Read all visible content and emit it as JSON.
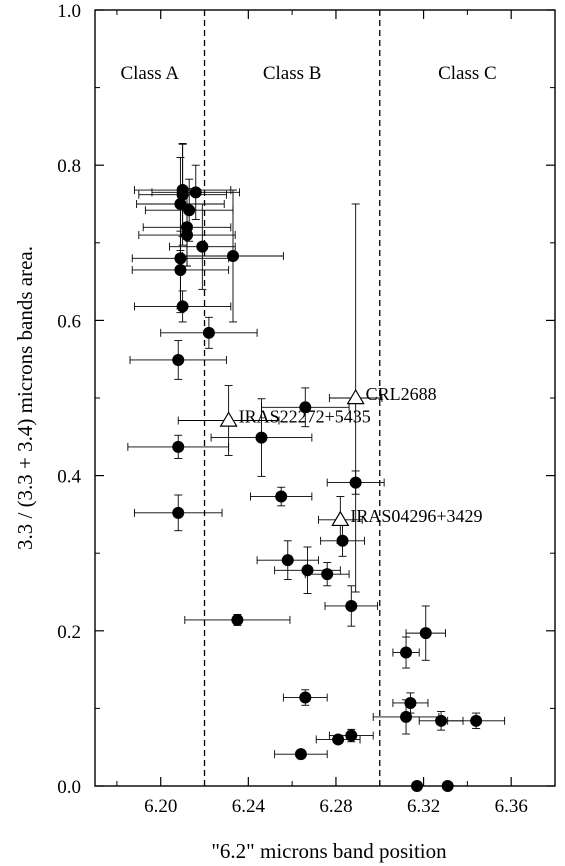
{
  "chart_data": {
    "type": "scatter",
    "xlabel": "\"6.2\" microns band position",
    "ylabel": "3.3 / (3.3 + 3.4)   microns  bands  area.",
    "xlim": [
      6.17,
      6.38
    ],
    "ylim": [
      0.0,
      1.0
    ],
    "x_ticks": [
      6.2,
      6.24,
      6.28,
      6.32,
      6.36
    ],
    "x_tick_labels": [
      "6.20",
      "6.24",
      "6.28",
      "6.32",
      "6.36"
    ],
    "y_ticks": [
      0.0,
      0.2,
      0.4,
      0.6,
      0.8,
      1.0
    ],
    "y_tick_labels": [
      "0.0",
      "0.2",
      "0.4",
      "0.6",
      "0.8",
      "1.0"
    ],
    "grid": false,
    "class_dividers": [
      6.22,
      6.3
    ],
    "class_labels": [
      {
        "text": "Class A",
        "x": 6.195,
        "y": 0.92
      },
      {
        "text": "Class B",
        "x": 6.26,
        "y": 0.92
      },
      {
        "text": "Class C",
        "x": 6.34,
        "y": 0.92
      }
    ],
    "series": [
      {
        "marker": "filled-circle",
        "points": [
          {
            "x": 6.21,
            "y": 0.768,
            "xerr": 0.022,
            "yerr": 0.06
          },
          {
            "x": 6.21,
            "y": 0.762,
            "xerr": 0.02,
            "yerr": 0.065
          },
          {
            "x": 6.216,
            "y": 0.765,
            "xerr": 0.02,
            "yerr": 0.035
          },
          {
            "x": 6.209,
            "y": 0.75,
            "xerr": 0.02,
            "yerr": 0.06
          },
          {
            "x": 6.213,
            "y": 0.742,
            "xerr": 0.02,
            "yerr": 0.04
          },
          {
            "x": 6.212,
            "y": 0.72,
            "xerr": 0.02,
            "yerr": 0.05
          },
          {
            "x": 6.212,
            "y": 0.71,
            "xerr": 0.022,
            "yerr": 0.04
          },
          {
            "x": 6.219,
            "y": 0.695,
            "xerr": 0.015,
            "yerr": 0.055
          },
          {
            "x": 6.233,
            "y": 0.683,
            "xerr": 0.023,
            "yerr": 0.085
          },
          {
            "x": 6.209,
            "y": 0.68,
            "xerr": 0.022,
            "yerr": 0.07
          },
          {
            "x": 6.209,
            "y": 0.665,
            "xerr": 0.022,
            "yerr": 0.05
          },
          {
            "x": 6.21,
            "y": 0.618,
            "xerr": 0.022,
            "yerr": 0.02
          },
          {
            "x": 6.222,
            "y": 0.584,
            "xerr": 0.022,
            "yerr": 0.02
          },
          {
            "x": 6.208,
            "y": 0.549,
            "xerr": 0.022,
            "yerr": 0.025
          },
          {
            "x": 6.266,
            "y": 0.488,
            "xerr": 0.02,
            "yerr": 0.025
          },
          {
            "x": 6.246,
            "y": 0.449,
            "xerr": 0.023,
            "yerr": 0.05
          },
          {
            "x": 6.208,
            "y": 0.437,
            "xerr": 0.023,
            "yerr": 0.015
          },
          {
            "x": 6.289,
            "y": 0.391,
            "xerr": 0.013,
            "yerr": 0.015
          },
          {
            "x": 6.255,
            "y": 0.373,
            "xerr": 0.014,
            "yerr": 0.012
          },
          {
            "x": 6.208,
            "y": 0.352,
            "xerr": 0.02,
            "yerr": 0.023
          },
          {
            "x": 6.283,
            "y": 0.316,
            "xerr": 0.01,
            "yerr": 0.02
          },
          {
            "x": 6.258,
            "y": 0.291,
            "xerr": 0.014,
            "yerr": 0.025
          },
          {
            "x": 6.267,
            "y": 0.278,
            "xerr": 0.015,
            "yerr": 0.03
          },
          {
            "x": 6.276,
            "y": 0.273,
            "xerr": 0.01,
            "yerr": 0.015
          },
          {
            "x": 6.287,
            "y": 0.232,
            "xerr": 0.012,
            "yerr": 0.026
          },
          {
            "x": 6.235,
            "y": 0.214,
            "xerr": 0.024,
            "yerr": 0.007
          },
          {
            "x": 6.321,
            "y": 0.197,
            "xerr": 0.009,
            "yerr": 0.035
          },
          {
            "x": 6.312,
            "y": 0.172,
            "xerr": 0.006,
            "yerr": 0.02
          },
          {
            "x": 6.266,
            "y": 0.114,
            "xerr": 0.01,
            "yerr": 0.01
          },
          {
            "x": 6.314,
            "y": 0.107,
            "xerr": 0.008,
            "yerr": 0.013
          },
          {
            "x": 6.312,
            "y": 0.089,
            "xerr": 0.015,
            "yerr": 0.022
          },
          {
            "x": 6.328,
            "y": 0.084,
            "xerr": 0.01,
            "yerr": 0.012
          },
          {
            "x": 6.344,
            "y": 0.084,
            "xerr": 0.013,
            "yerr": 0.01
          },
          {
            "x": 6.287,
            "y": 0.065,
            "xerr": 0.01,
            "yerr": 0.008
          },
          {
            "x": 6.281,
            "y": 0.06,
            "xerr": 0.01,
            "yerr": 0.005
          },
          {
            "x": 6.264,
            "y": 0.041,
            "xerr": 0.012,
            "yerr": 0.005
          },
          {
            "x": 6.317,
            "y": 0.0,
            "xerr": 0.0,
            "yerr": 0.0
          },
          {
            "x": 6.331,
            "y": 0.0,
            "xerr": 0.0,
            "yerr": 0.0
          }
        ]
      },
      {
        "marker": "open-triangle",
        "points": [
          {
            "x": 6.289,
            "y": 0.5,
            "xerr": 0.012,
            "yerr": 0.25,
            "label": "CRL2688"
          },
          {
            "x": 6.231,
            "y": 0.471,
            "xerr": 0.023,
            "yerr": 0.045,
            "label": "IRAS22272+5435"
          },
          {
            "x": 6.282,
            "y": 0.343,
            "xerr": 0.01,
            "yerr": 0.03,
            "label": "IRAS04296+3429"
          }
        ]
      }
    ]
  }
}
